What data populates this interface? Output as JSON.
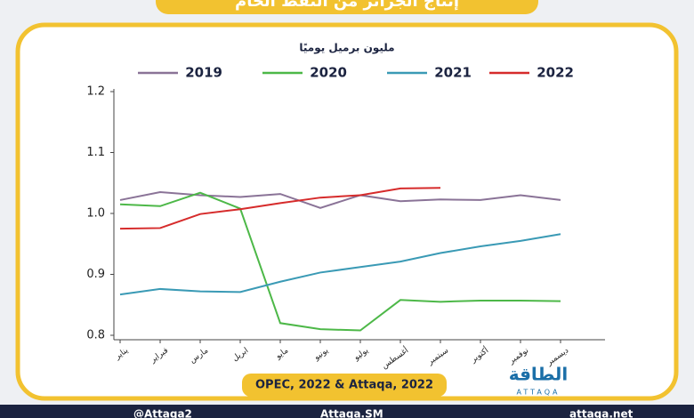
{
  "chart_data": {
    "type": "line",
    "title": "إنتاج الجزائر من النفط الخام",
    "subtitle": "مليون برميل يوميًا",
    "source": "OPEC, 2022 & Attaqa, 2022",
    "categories": [
      "يناير",
      "فبراير",
      "مارس",
      "ابريل",
      "مايو",
      "يونيو",
      "يوليو",
      "أغسطس",
      "سبتمبر",
      "أكتوبر",
      "نوفمبر",
      "ديسمبر"
    ],
    "series": [
      {
        "name": "2019",
        "color": "#8a7397",
        "values": [
          1.022,
          1.035,
          1.03,
          1.027,
          1.032,
          1.009,
          1.03,
          1.02,
          1.023,
          1.022,
          1.03,
          1.022
        ]
      },
      {
        "name": "2020",
        "color": "#4db848",
        "values": [
          1.015,
          1.012,
          1.034,
          1.008,
          0.82,
          0.81,
          0.808,
          0.858,
          0.855,
          0.857,
          0.857,
          0.856
        ]
      },
      {
        "name": "2021",
        "color": "#3a9ab5",
        "values": [
          0.867,
          0.876,
          0.872,
          0.871,
          0.888,
          0.903,
          0.912,
          0.921,
          0.935,
          0.946,
          0.955,
          0.966
        ]
      },
      {
        "name": "2022",
        "color": "#d62b2b",
        "values": [
          0.975,
          0.976,
          0.999,
          1.007,
          1.017,
          1.026,
          1.03,
          1.041,
          1.042,
          null,
          null,
          null
        ]
      }
    ],
    "ylim": [
      0.8,
      1.2
    ],
    "yticks": [
      {
        "value": 0.8,
        "label": "0.8"
      },
      {
        "value": 0.9,
        "label": "0.9"
      },
      {
        "value": 1.0,
        "label": "1.0"
      },
      {
        "value": 1.1,
        "label": "1.1"
      },
      {
        "value": 1.2,
        "label": "1.2"
      }
    ],
    "grid": false
  },
  "brand": {
    "name": "الطاقة",
    "latin": "ATTAQA"
  },
  "footer": {
    "twitter": "@Attaqa2",
    "social": "Attaqa.SM",
    "web": "attaqa.net"
  }
}
